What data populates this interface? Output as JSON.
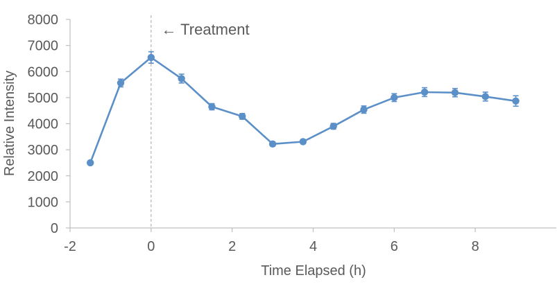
{
  "chart_data": {
    "type": "line",
    "title": "",
    "xlabel": "Time Elapsed (h)",
    "ylabel": "Relative Intensity",
    "xlim": [
      -2,
      10
    ],
    "ylim": [
      0,
      8000
    ],
    "x_ticks": [
      -2,
      0,
      2,
      4,
      6,
      8
    ],
    "y_ticks": [
      0,
      1000,
      2000,
      3000,
      4000,
      5000,
      6000,
      7000,
      8000
    ],
    "x_tick_labels": [
      "-2",
      "0",
      "2",
      "4",
      "6",
      "8"
    ],
    "y_tick_labels": [
      "0",
      "1000",
      "2000",
      "3000",
      "4000",
      "5000",
      "6000",
      "7000",
      "8000"
    ],
    "grid": false,
    "legend": "none",
    "color": "#5B8FC7",
    "series": [
      {
        "x": [
          -1.5,
          -0.75,
          0,
          0.75,
          1.5,
          2.25,
          3,
          3.75,
          4.5,
          5.25,
          6,
          6.75,
          7.5,
          8.25,
          9
        ],
        "y": [
          2500,
          5560,
          6540,
          5730,
          4650,
          4280,
          3220,
          3310,
          3900,
          4540,
          5000,
          5210,
          5190,
          5040,
          4870
        ],
        "error": [
          40,
          150,
          220,
          170,
          120,
          110,
          80,
          80,
          110,
          140,
          150,
          170,
          160,
          170,
          200
        ]
      }
    ],
    "annotations": [
      {
        "type": "vline",
        "x": 0,
        "style": "dashed"
      },
      {
        "type": "text",
        "text": "← Treatment",
        "x": 0.25,
        "y": 7420
      }
    ]
  }
}
